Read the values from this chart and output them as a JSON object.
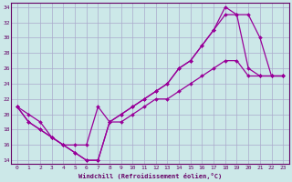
{
  "xlabel": "Windchill (Refroidissement éolien,°C)",
  "bg_color": "#cce8e8",
  "grid_color": "#aaaacc",
  "line_color": "#990099",
  "xlim": [
    -0.5,
    23.5
  ],
  "ylim": [
    13.5,
    34.5
  ],
  "xticks": [
    0,
    1,
    2,
    3,
    4,
    5,
    6,
    7,
    8,
    9,
    10,
    11,
    12,
    13,
    14,
    15,
    16,
    17,
    18,
    19,
    20,
    21,
    22,
    23
  ],
  "yticks": [
    14,
    16,
    18,
    20,
    22,
    24,
    26,
    28,
    30,
    32,
    34
  ],
  "line1_x": [
    0,
    1,
    2,
    3,
    4,
    5,
    6,
    7,
    8,
    9,
    10,
    11,
    12,
    13,
    14,
    15,
    16,
    17,
    18,
    19,
    20,
    21,
    22,
    23
  ],
  "line1_y": [
    21,
    19,
    18,
    17,
    16,
    15,
    14,
    14,
    19,
    20,
    21,
    22,
    23,
    24,
    26,
    27,
    29,
    31,
    34,
    33,
    33,
    30,
    25,
    25
  ],
  "line2_x": [
    0,
    1,
    2,
    3,
    4,
    5,
    6,
    7,
    8,
    9,
    10,
    11,
    12,
    13,
    14,
    15,
    16,
    17,
    18,
    19,
    20,
    21,
    22,
    23
  ],
  "line2_y": [
    21,
    20,
    19,
    17,
    16,
    15,
    14,
    14,
    19,
    20,
    21,
    22,
    23,
    24,
    26,
    27,
    29,
    31,
    33,
    33,
    26,
    25,
    25,
    25
  ],
  "line3_x": [
    0,
    1,
    2,
    3,
    4,
    5,
    6,
    7,
    8,
    9,
    10,
    11,
    12,
    13,
    14,
    15,
    16,
    17,
    18,
    19,
    20,
    21,
    22,
    23
  ],
  "line3_y": [
    21,
    19,
    18,
    17,
    16,
    16,
    16,
    21,
    19,
    19,
    20,
    21,
    22,
    22,
    23,
    24,
    25,
    26,
    27,
    27,
    25,
    25,
    25,
    25
  ]
}
